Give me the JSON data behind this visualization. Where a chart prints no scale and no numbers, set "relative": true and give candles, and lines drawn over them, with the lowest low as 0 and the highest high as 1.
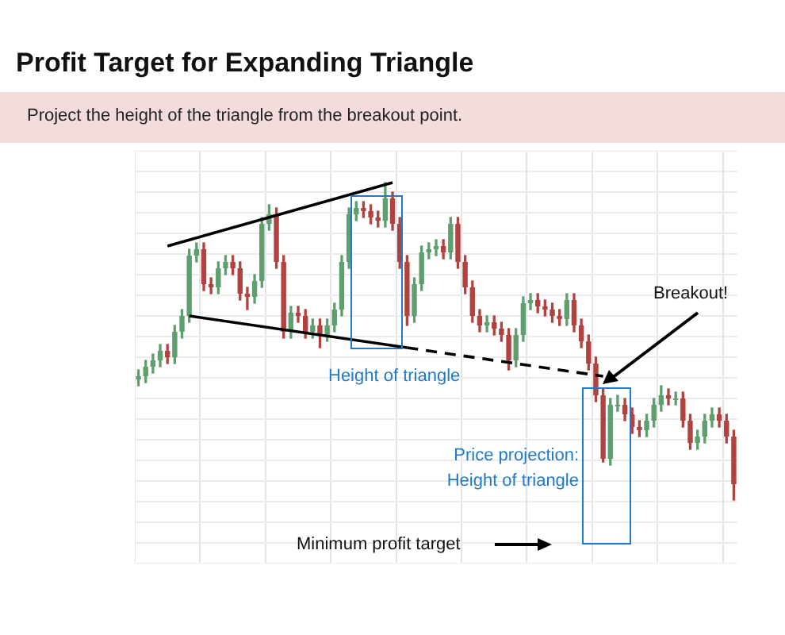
{
  "chart_data": {
    "type": "candlestick",
    "title": "Profit Target for Expanding Triangle",
    "subtitle": "Project the height of the triangle from the breakout point.",
    "relative": true,
    "grid": true,
    "legend": false,
    "categories": [
      null,
      null,
      null,
      null,
      null,
      null,
      null,
      null,
      null,
      null,
      null,
      null,
      null,
      null,
      null,
      null,
      null,
      null,
      null,
      null,
      null,
      null,
      null,
      null,
      null,
      null,
      null,
      null,
      null,
      null,
      null,
      null,
      null,
      null,
      null,
      null,
      null,
      null,
      null,
      null,
      null,
      null,
      null,
      null,
      null,
      null,
      null,
      null,
      null,
      null,
      null,
      null,
      null,
      null,
      null,
      null,
      null,
      null,
      null,
      null,
      null,
      null,
      null,
      null,
      null,
      null,
      null,
      null,
      null,
      null,
      null,
      null,
      null,
      null,
      null,
      null,
      null,
      null,
      null,
      null,
      null,
      null,
      null
    ],
    "ohlc": [
      [
        0.38,
        0.41,
        0.36,
        0.39
      ],
      [
        0.39,
        0.44,
        0.37,
        0.42
      ],
      [
        0.42,
        0.46,
        0.4,
        0.44
      ],
      [
        0.44,
        0.49,
        0.42,
        0.47
      ],
      [
        0.47,
        0.49,
        0.43,
        0.45
      ],
      [
        0.45,
        0.55,
        0.43,
        0.53
      ],
      [
        0.53,
        0.6,
        0.51,
        0.58
      ],
      [
        0.58,
        0.79,
        0.56,
        0.77
      ],
      [
        0.77,
        0.81,
        0.75,
        0.79
      ],
      [
        0.79,
        0.81,
        0.66,
        0.68
      ],
      [
        0.68,
        0.7,
        0.65,
        0.67
      ],
      [
        0.67,
        0.75,
        0.65,
        0.73
      ],
      [
        0.73,
        0.77,
        0.71,
        0.75
      ],
      [
        0.75,
        0.77,
        0.71,
        0.73
      ],
      [
        0.73,
        0.75,
        0.63,
        0.65
      ],
      [
        0.65,
        0.67,
        0.6,
        0.64
      ],
      [
        0.64,
        0.71,
        0.62,
        0.69
      ],
      [
        0.69,
        0.89,
        0.67,
        0.87
      ],
      [
        0.87,
        0.93,
        0.85,
        0.9
      ],
      [
        0.9,
        0.92,
        0.73,
        0.75
      ],
      [
        0.75,
        0.77,
        0.51,
        0.53
      ],
      [
        0.53,
        0.61,
        0.51,
        0.59
      ],
      [
        0.59,
        0.61,
        0.56,
        0.58
      ],
      [
        0.58,
        0.6,
        0.51,
        0.53
      ],
      [
        0.53,
        0.57,
        0.51,
        0.55
      ],
      [
        0.55,
        0.57,
        0.48,
        0.52
      ],
      [
        0.52,
        0.57,
        0.5,
        0.55
      ],
      [
        0.55,
        0.62,
        0.53,
        0.6
      ],
      [
        0.6,
        0.77,
        0.58,
        0.75
      ],
      [
        0.75,
        0.92,
        0.73,
        0.9
      ],
      [
        0.9,
        0.94,
        0.88,
        0.92
      ],
      [
        0.92,
        0.94,
        0.89,
        0.91
      ],
      [
        0.91,
        0.93,
        0.87,
        0.89
      ],
      [
        0.89,
        0.91,
        0.86,
        0.88
      ],
      [
        0.88,
        1.0,
        0.86,
        0.95
      ],
      [
        0.95,
        0.97,
        0.85,
        0.87
      ],
      [
        0.87,
        0.89,
        0.73,
        0.75
      ],
      [
        0.75,
        0.77,
        0.55,
        0.58
      ],
      [
        0.58,
        0.7,
        0.56,
        0.68
      ],
      [
        0.68,
        0.8,
        0.66,
        0.78
      ],
      [
        0.78,
        0.81,
        0.76,
        0.79
      ],
      [
        0.79,
        0.82,
        0.77,
        0.8
      ],
      [
        0.8,
        0.82,
        0.76,
        0.78
      ],
      [
        0.78,
        0.89,
        0.76,
        0.87
      ],
      [
        0.87,
        0.89,
        0.73,
        0.75
      ],
      [
        0.75,
        0.77,
        0.65,
        0.67
      ],
      [
        0.67,
        0.69,
        0.56,
        0.58
      ],
      [
        0.58,
        0.6,
        0.53,
        0.55
      ],
      [
        0.55,
        0.58,
        0.53,
        0.56
      ],
      [
        0.56,
        0.58,
        0.52,
        0.54
      ],
      [
        0.54,
        0.56,
        0.5,
        0.52
      ],
      [
        0.52,
        0.54,
        0.41,
        0.44
      ],
      [
        0.44,
        0.54,
        0.42,
        0.52
      ],
      [
        0.52,
        0.64,
        0.5,
        0.62
      ],
      [
        0.62,
        0.65,
        0.6,
        0.63
      ],
      [
        0.63,
        0.65,
        0.59,
        0.61
      ],
      [
        0.61,
        0.63,
        0.58,
        0.6
      ],
      [
        0.6,
        0.62,
        0.56,
        0.58
      ],
      [
        0.58,
        0.6,
        0.55,
        0.57
      ],
      [
        0.57,
        0.65,
        0.55,
        0.63
      ],
      [
        0.63,
        0.65,
        0.53,
        0.55
      ],
      [
        0.55,
        0.57,
        0.48,
        0.5
      ],
      [
        0.5,
        0.52,
        0.41,
        0.43
      ],
      [
        0.43,
        0.45,
        0.31,
        0.33
      ],
      [
        0.33,
        0.35,
        0.12,
        0.13
      ],
      [
        0.13,
        0.32,
        0.11,
        0.3
      ],
      [
        0.3,
        0.33,
        0.28,
        0.3
      ],
      [
        0.3,
        0.32,
        0.25,
        0.27
      ],
      [
        0.27,
        0.29,
        0.21,
        0.23
      ],
      [
        0.23,
        0.25,
        0.2,
        0.22
      ],
      [
        0.22,
        0.27,
        0.2,
        0.25
      ],
      [
        0.25,
        0.32,
        0.23,
        0.3
      ],
      [
        0.3,
        0.36,
        0.28,
        0.33
      ],
      [
        0.33,
        0.35,
        0.3,
        0.32
      ],
      [
        0.32,
        0.34,
        0.3,
        0.32
      ],
      [
        0.32,
        0.34,
        0.23,
        0.25
      ],
      [
        0.25,
        0.27,
        0.16,
        0.18
      ],
      [
        0.18,
        0.22,
        0.16,
        0.2
      ],
      [
        0.2,
        0.27,
        0.18,
        0.25
      ],
      [
        0.25,
        0.29,
        0.23,
        0.27
      ],
      [
        0.27,
        0.29,
        0.23,
        0.25
      ],
      [
        0.25,
        0.27,
        0.18,
        0.2
      ],
      [
        0.2,
        0.22,
        0.0,
        0.05
      ]
    ],
    "series": [
      {
        "type": "line",
        "color": "#000000",
        "line_style": "solid",
        "values": [
          null,
          null,
          null,
          null,
          0.8,
          null,
          null,
          null,
          null,
          null,
          null,
          null,
          null,
          null,
          null,
          null,
          null,
          null,
          null,
          null,
          null,
          null,
          null,
          null,
          null,
          null,
          null,
          null,
          null,
          null,
          null,
          null,
          null,
          null,
          null,
          1.0,
          null,
          null,
          null,
          null,
          null,
          null,
          null,
          null,
          null,
          null,
          null,
          null,
          null,
          null,
          null,
          null,
          null,
          null,
          null,
          null,
          null,
          null,
          null,
          null,
          null,
          null,
          null,
          null,
          null,
          null,
          null,
          null,
          null,
          null,
          null,
          null,
          null,
          null,
          null,
          null,
          null,
          null,
          null,
          null,
          null,
          null,
          null
        ]
      },
      {
        "type": "line",
        "color": "#000000",
        "line_style": "solid",
        "values": [
          null,
          null,
          null,
          null,
          null,
          null,
          null,
          0.58,
          null,
          null,
          null,
          null,
          null,
          null,
          null,
          null,
          null,
          null,
          null,
          null,
          null,
          null,
          null,
          null,
          null,
          null,
          null,
          null,
          null,
          null,
          null,
          null,
          null,
          null,
          null,
          null,
          null,
          0.48,
          null,
          null,
          null,
          null,
          null,
          null,
          null,
          null,
          null,
          null,
          null,
          null,
          null,
          null,
          null,
          null,
          null,
          null,
          null,
          null,
          null,
          null,
          null,
          null,
          null,
          null,
          null,
          null,
          null,
          null,
          null,
          null,
          null,
          null,
          null,
          null,
          null,
          null,
          null,
          null,
          null,
          null,
          null,
          null,
          null
        ]
      },
      {
        "type": "line",
        "color": "#000000",
        "line_style": "dashed",
        "values": [
          null,
          null,
          null,
          null,
          null,
          null,
          null,
          null,
          null,
          null,
          null,
          null,
          null,
          null,
          null,
          null,
          null,
          null,
          null,
          null,
          null,
          null,
          null,
          null,
          null,
          null,
          null,
          null,
          null,
          null,
          null,
          null,
          null,
          null,
          null,
          null,
          null,
          0.48,
          null,
          null,
          null,
          null,
          null,
          null,
          null,
          null,
          null,
          null,
          null,
          null,
          null,
          null,
          null,
          null,
          null,
          null,
          null,
          null,
          null,
          null,
          null,
          null,
          null,
          null,
          0.39,
          null,
          null,
          null,
          null,
          null,
          null,
          null,
          null,
          null,
          null,
          null,
          null,
          null,
          null,
          null,
          null,
          null,
          null
        ]
      }
    ],
    "annotations": [
      "Height of triangle",
      "Breakout!",
      "Price projection:\nHeight of triangle",
      "Minimum profit target"
    ]
  }
}
